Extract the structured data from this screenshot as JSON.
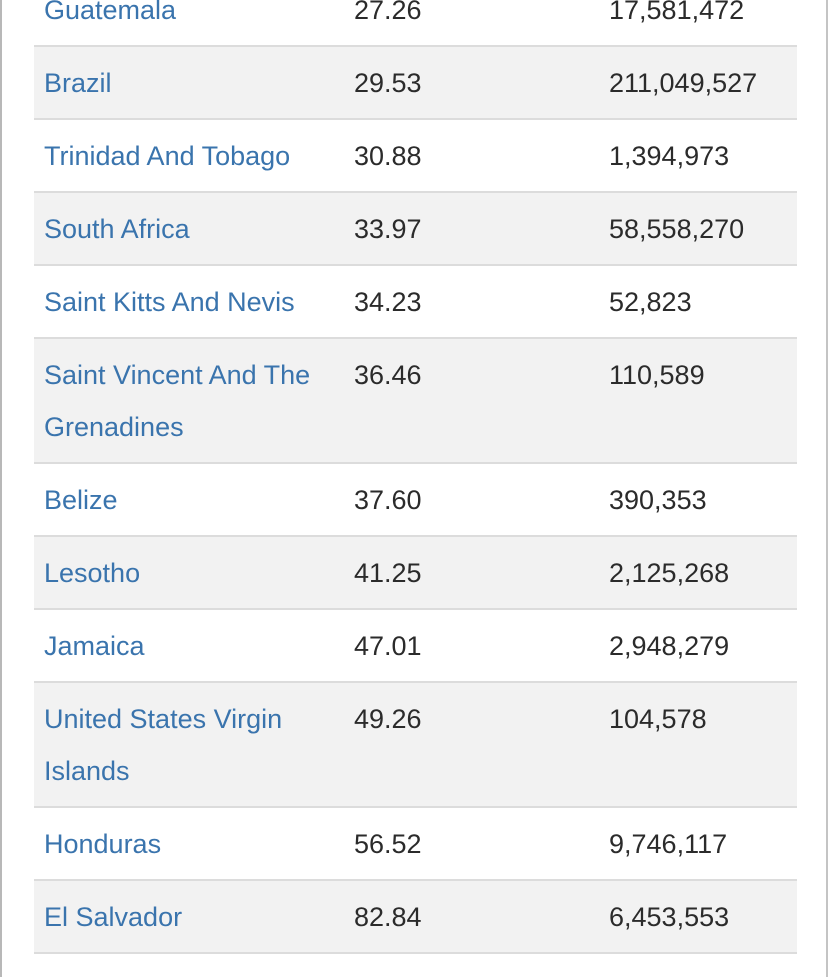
{
  "table": {
    "rows": [
      {
        "country": "Guatemala",
        "rate": "27.26",
        "population": "17,581,472"
      },
      {
        "country": "Brazil",
        "rate": "29.53",
        "population": "211,049,527"
      },
      {
        "country": "Trinidad And Tobago",
        "rate": "30.88",
        "population": "1,394,973"
      },
      {
        "country": "South Africa",
        "rate": "33.97",
        "population": "58,558,270"
      },
      {
        "country": "Saint Kitts And Nevis",
        "rate": "34.23",
        "population": "52,823"
      },
      {
        "country": "Saint Vincent And The Grenadines",
        "rate": "36.46",
        "population": "110,589"
      },
      {
        "country": "Belize",
        "rate": "37.60",
        "population": "390,353"
      },
      {
        "country": "Lesotho",
        "rate": "41.25",
        "population": "2,125,268"
      },
      {
        "country": "Jamaica",
        "rate": "47.01",
        "population": "2,948,279"
      },
      {
        "country": "United States Virgin Islands",
        "rate": "49.26",
        "population": "104,578"
      },
      {
        "country": "Honduras",
        "rate": "56.52",
        "population": "9,746,117"
      },
      {
        "country": "El Salvador",
        "rate": "82.84",
        "population": "6,453,553"
      }
    ]
  }
}
